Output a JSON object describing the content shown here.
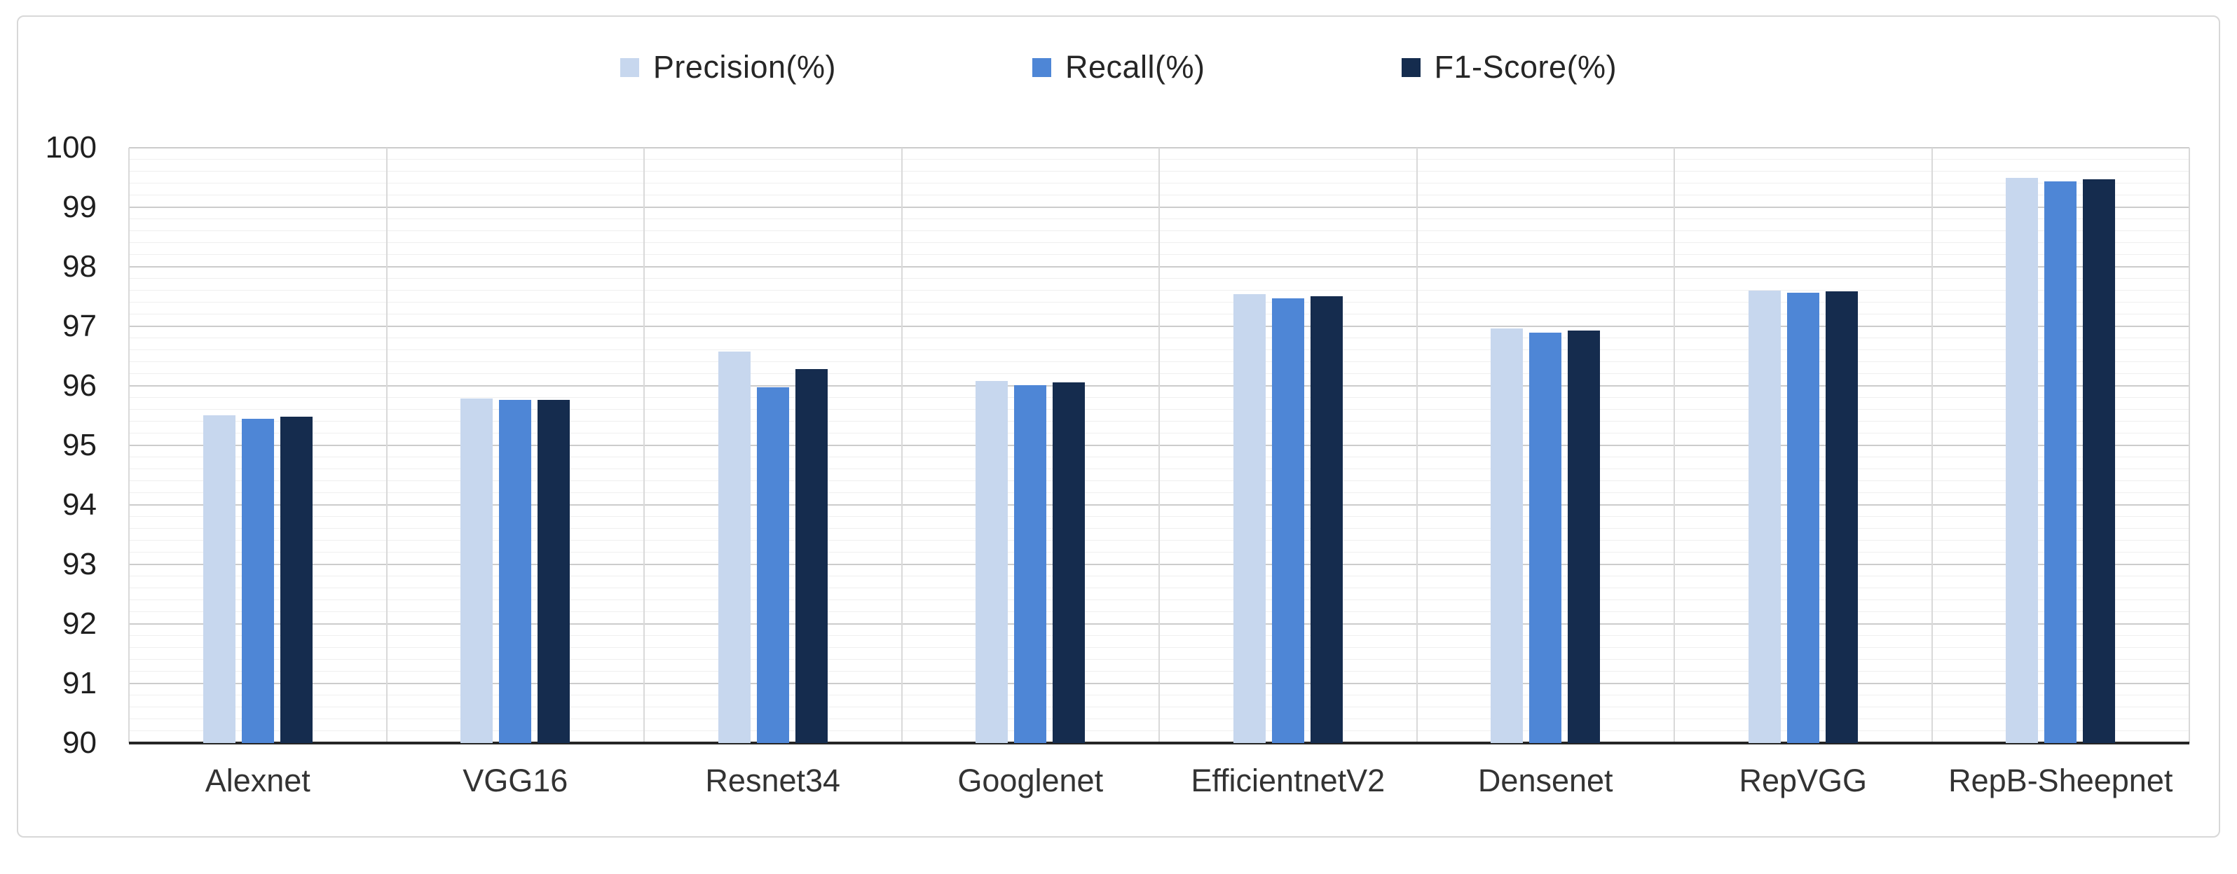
{
  "figure": {
    "background": "#ffffff",
    "frame_border_color": "#d8d8d8"
  },
  "legend": [
    {
      "label": "Precision(%)",
      "color": "#c7d7ee"
    },
    {
      "label": "Recall(%)",
      "color": "#4e86d6"
    },
    {
      "label": "F1-Score(%)",
      "color": "#152c4e"
    }
  ],
  "axis_style": {
    "major_grid_color": "#cccccc",
    "minor_grid_color": "#efefef",
    "vertical_grid_color": "#d9d9d9",
    "x_axis_line_color": "#262626",
    "tick_label_color": "#1f1f1f"
  },
  "chart_data": {
    "type": "bar",
    "title": "",
    "xlabel": "",
    "ylabel": "",
    "categories": [
      "Alexnet",
      "VGG16",
      "Resnet34",
      "Googlenet",
      "EfficientnetV2",
      "Densenet",
      "RepVGG",
      "RepB-Sheepnet"
    ],
    "series": [
      {
        "name": "Precision(%)",
        "color": "#c7d7ee",
        "values": [
          95.51,
          95.79,
          96.58,
          96.08,
          97.54,
          96.96,
          97.6,
          99.49
        ]
      },
      {
        "name": "Recall(%)",
        "color": "#4e86d6",
        "values": [
          95.45,
          95.76,
          95.98,
          96.01,
          97.47,
          96.9,
          97.57,
          99.44
        ]
      },
      {
        "name": "F1-Score(%)",
        "color": "#152c4e",
        "values": [
          95.48,
          95.76,
          96.28,
          96.06,
          97.51,
          96.93,
          97.59,
          99.47
        ]
      }
    ],
    "ylim": [
      90,
      100
    ],
    "y_ticks": [
      100,
      99,
      98,
      97,
      96,
      95,
      94,
      93,
      92,
      91,
      90
    ],
    "y_minor_step": 0.2,
    "grid": true,
    "legend_position": "top-center"
  }
}
